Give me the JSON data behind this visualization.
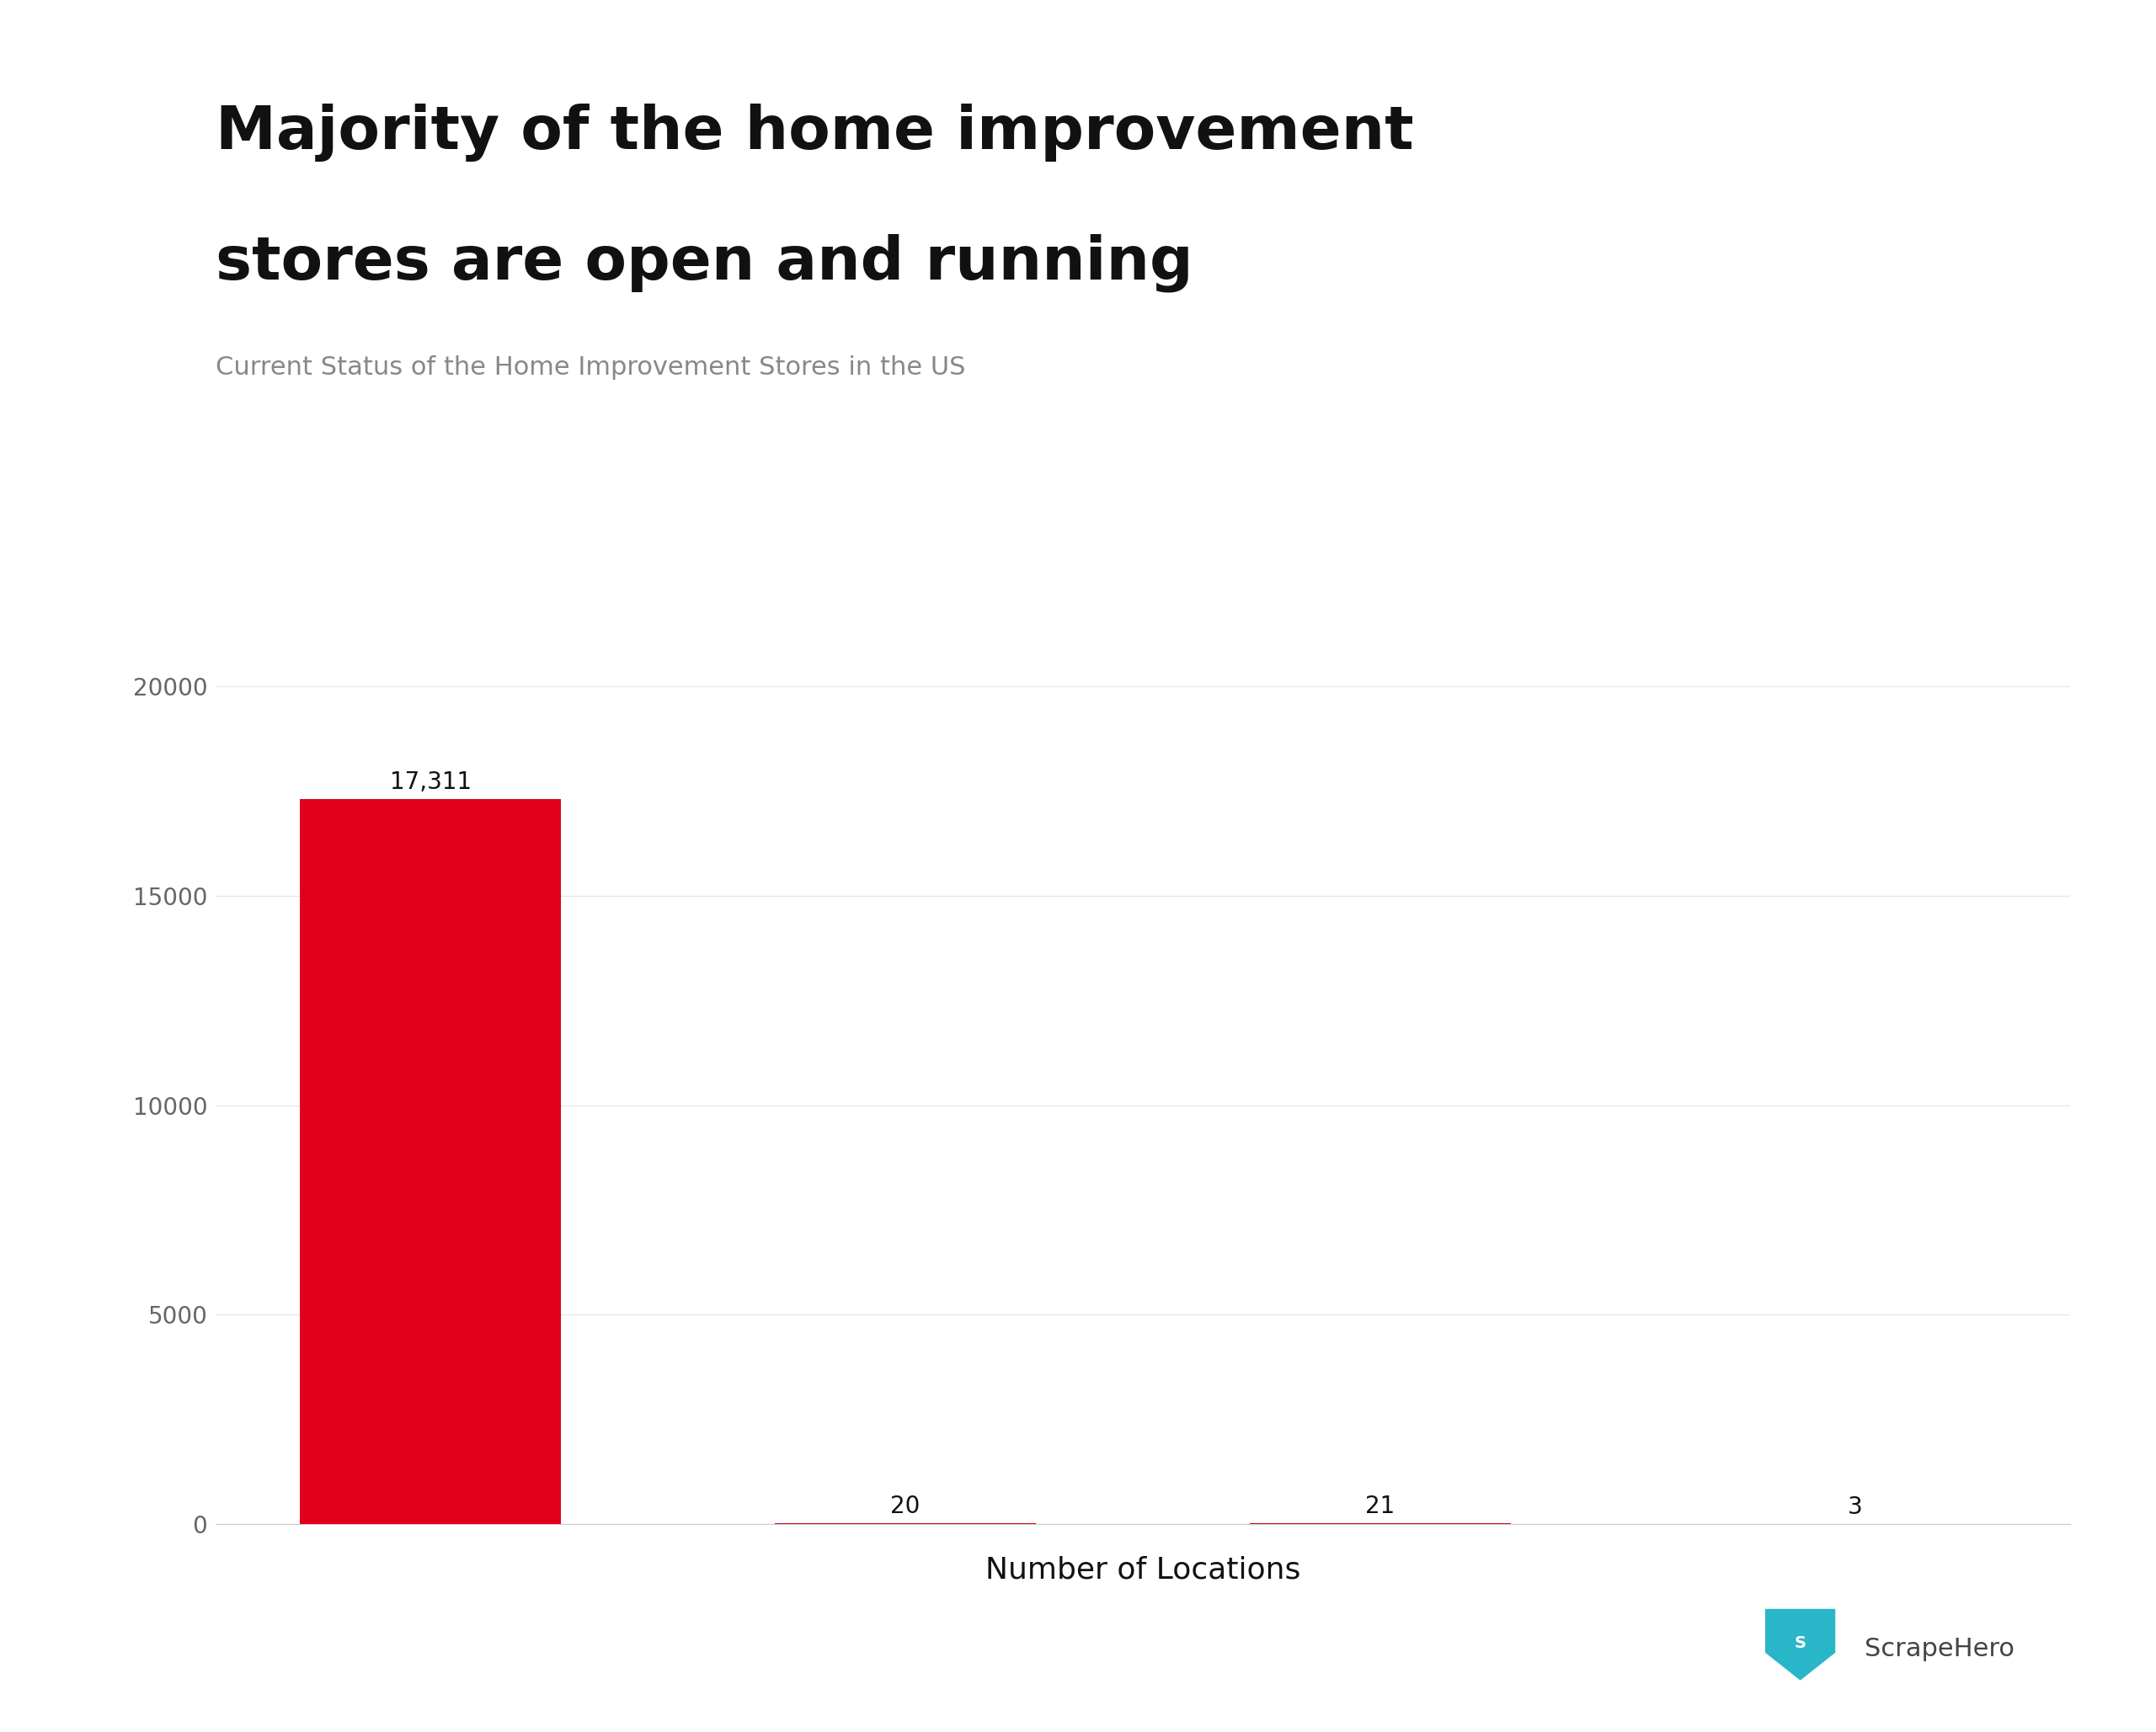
{
  "title_line1": "Majority of the home improvement",
  "title_line2": "stores are open and running",
  "subtitle": "Current Status of the Home Improvement Stores in the US",
  "categories": [
    "",
    "",
    "",
    ""
  ],
  "values": [
    17311,
    20,
    21,
    3
  ],
  "bar_color": "#E0001B",
  "xlabel": "Number of Locations",
  "yticks": [
    0,
    5000,
    10000,
    15000,
    20000
  ],
  "ytick_labels": [
    "0",
    "5000",
    "10000",
    "15000",
    "20000"
  ],
  "ylim": [
    0,
    21500
  ],
  "background_color": "#ffffff",
  "title_fontsize": 52,
  "subtitle_fontsize": 22,
  "xlabel_fontsize": 26,
  "annotation_fontsize": 20,
  "ytick_fontsize": 20,
  "bar_width": 0.55,
  "grid_color": "#e8e8e8",
  "title_color": "#111111",
  "subtitle_color": "#888888",
  "ytick_color": "#666666",
  "xlabel_color": "#111111",
  "watermark_text": "ScrapeHero",
  "watermark_color": "#444444",
  "logo_color": "#29b6c8",
  "annotation_color": "#111111"
}
